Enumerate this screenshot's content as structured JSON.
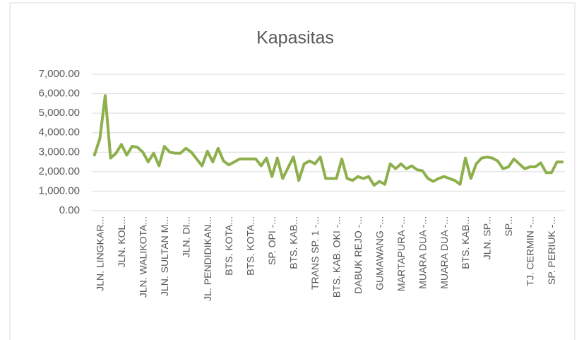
{
  "chart_data": {
    "type": "line",
    "title": "Kapasitas",
    "categories": [
      "JLN. LINGKAR...",
      null,
      null,
      null,
      "JLN. KOL...",
      null,
      null,
      null,
      "JLN. WALIKOTA...",
      null,
      null,
      null,
      "JLN. SULTAN M...",
      null,
      null,
      null,
      "JLN. DI...",
      null,
      null,
      null,
      "JL. PENDIDIKAN...",
      null,
      null,
      null,
      "BTS. KOTA...",
      null,
      null,
      null,
      "BTS. KOTA...",
      null,
      null,
      null,
      "SP. OPI -...",
      null,
      null,
      null,
      "BTS. KAB...",
      null,
      null,
      null,
      "TRANS SP. 1 -...",
      null,
      null,
      null,
      "BTS. KAB. OKI -...",
      null,
      null,
      null,
      "DABUK REJO -...",
      null,
      null,
      null,
      "GUMAWANG -...",
      null,
      null,
      null,
      "MARTAPURA -...",
      null,
      null,
      null,
      "MUARA DUA -...",
      null,
      null,
      null,
      "MUARA DUA -...",
      null,
      null,
      null,
      "BTS. KAB...",
      null,
      null,
      null,
      "JLN. SP...",
      null,
      null,
      null,
      "SP...",
      null,
      null,
      null,
      "TJ. CERMIN -...",
      null,
      null,
      null,
      "SP. PERIUK -...",
      null,
      null,
      null
    ],
    "series": [
      {
        "name": "Kapasitas",
        "color": "#8db04d",
        "values": [
          2850,
          3700,
          5900,
          2700,
          2950,
          3400,
          2850,
          3300,
          3250,
          3000,
          2500,
          2950,
          2300,
          3300,
          3000,
          2950,
          2950,
          3200,
          3000,
          2650,
          2300,
          3050,
          2500,
          3200,
          2550,
          2350,
          2500,
          2650,
          2650,
          2650,
          2650,
          2300,
          2700,
          1750,
          2700,
          1650,
          2200,
          2750,
          1550,
          2400,
          2550,
          2400,
          2750,
          1650,
          1650,
          1650,
          2650,
          1650,
          1550,
          1750,
          1650,
          1750,
          1300,
          1500,
          1350,
          2400,
          2150,
          2400,
          2150,
          2300,
          2100,
          2050,
          1650,
          1500,
          1650,
          1750,
          1650,
          1550,
          1350,
          2700,
          1650,
          2400,
          2700,
          2750,
          2700,
          2550,
          2150,
          2250,
          2650,
          2400,
          2150,
          2250,
          2250,
          2450,
          1950,
          1950,
          2500,
          2500
        ]
      }
    ],
    "ylim": [
      0,
      7000
    ],
    "yticks": [
      {
        "value": 0,
        "label": "0.00"
      },
      {
        "value": 1000,
        "label": "1,000.00"
      },
      {
        "value": 2000,
        "label": "2,000.00"
      },
      {
        "value": 3000,
        "label": "3,000.00"
      },
      {
        "value": 4000,
        "label": "4,000.00"
      },
      {
        "value": 5000,
        "label": "5,000.00"
      },
      {
        "value": 6000,
        "label": "6,000.00"
      },
      {
        "value": 7000,
        "label": "7,000.00"
      }
    ],
    "grid": true
  }
}
